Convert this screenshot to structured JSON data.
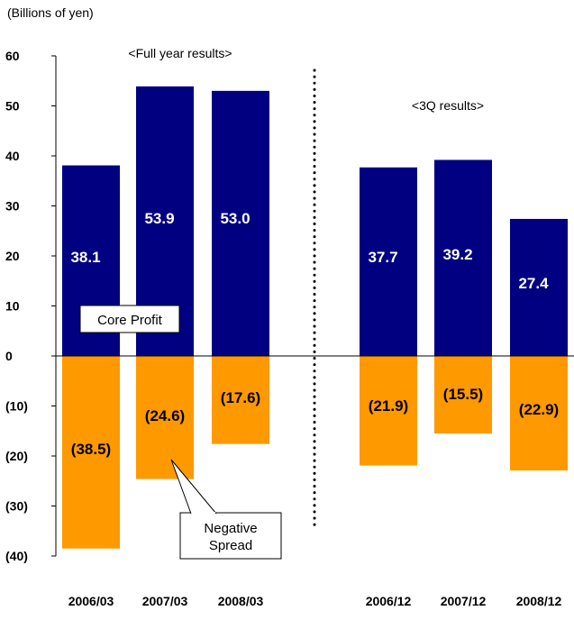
{
  "chart_data": {
    "type": "bar",
    "unit_label": "(Billions of yen)",
    "ylim": [
      -40,
      60
    ],
    "yticks": [
      {
        "value": 60,
        "label": "60"
      },
      {
        "value": 50,
        "label": "50"
      },
      {
        "value": 40,
        "label": "40"
      },
      {
        "value": 30,
        "label": "30"
      },
      {
        "value": 20,
        "label": "20"
      },
      {
        "value": 10,
        "label": "10"
      },
      {
        "value": 0,
        "label": "0"
      },
      {
        "value": -10,
        "label": "(10)"
      },
      {
        "value": -20,
        "label": "(20)"
      },
      {
        "value": -30,
        "label": "(30)"
      },
      {
        "value": -40,
        "label": "(40)"
      }
    ],
    "groups": [
      {
        "title": "<Full year results>",
        "categories": [
          "2006/03",
          "2007/03",
          "2008/03"
        ]
      },
      {
        "title": "<3Q results>",
        "categories": [
          "2006/12",
          "2007/12",
          "2008/12"
        ]
      }
    ],
    "series": [
      {
        "name": "Core Profit",
        "color": "#000080",
        "values": [
          38.1,
          53.9,
          53.0,
          37.7,
          39.2,
          27.4
        ],
        "labels": [
          "38.1",
          "53.9",
          "53.0",
          "37.7",
          "39.2",
          "27.4"
        ]
      },
      {
        "name": "Negative Spread",
        "color": "#ff9900",
        "values": [
          -38.5,
          -24.6,
          -17.6,
          -21.9,
          -15.5,
          -22.9
        ],
        "labels": [
          "(38.5)",
          "(24.6)",
          "(17.6)",
          "(21.9)",
          "(15.5)",
          "(22.9)"
        ]
      }
    ],
    "callouts": {
      "core_profit": "Core Profit",
      "negative_spread_line1": "Negative",
      "negative_spread_line2": "Spread"
    }
  }
}
